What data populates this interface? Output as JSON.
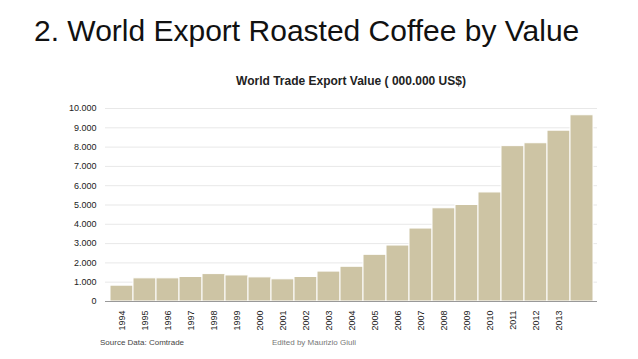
{
  "chart_data": {
    "type": "bar",
    "title": "2. World Export Roasted Coffee by Value",
    "subtitle": "World Trade Export Value ( 000.000 US$)",
    "annotations": [
      "Source Data: Comtrade",
      "Edited by Maurizio Giuli"
    ],
    "categories": [
      "1994",
      "1995",
      "1996",
      "1997",
      "1998",
      "1999",
      "2000",
      "2001",
      "2002",
      "2003",
      "2004",
      "2005",
      "2006",
      "2007",
      "2008",
      "2009",
      "2010",
      "2011",
      "2012",
      "2013",
      null
    ],
    "values": [
      820,
      1200,
      1200,
      1270,
      1420,
      1350,
      1250,
      1150,
      1270,
      1550,
      1800,
      2420,
      2900,
      3780,
      4830,
      5000,
      5650,
      8050,
      8200,
      8850,
      9650
    ],
    "color": "#cdc4a4",
    "ylim": [
      0,
      10000
    ],
    "yticks": [
      0,
      {
        "value": 1000,
        "label": "1.000"
      },
      {
        "value": 2000,
        "label": "2.000"
      },
      {
        "value": 3000,
        "label": "3.000"
      },
      {
        "value": 4000,
        "label": "4.000"
      },
      {
        "value": 5000,
        "label": "5.000"
      },
      {
        "value": 6000,
        "label": "6.000"
      },
      {
        "value": 7000,
        "label": "7.000"
      },
      {
        "value": 8000,
        "label": "8.000"
      },
      {
        "value": 9000,
        "label": "9.000"
      },
      {
        "value": 10000,
        "label": "10.000"
      }
    ],
    "grid": true
  }
}
